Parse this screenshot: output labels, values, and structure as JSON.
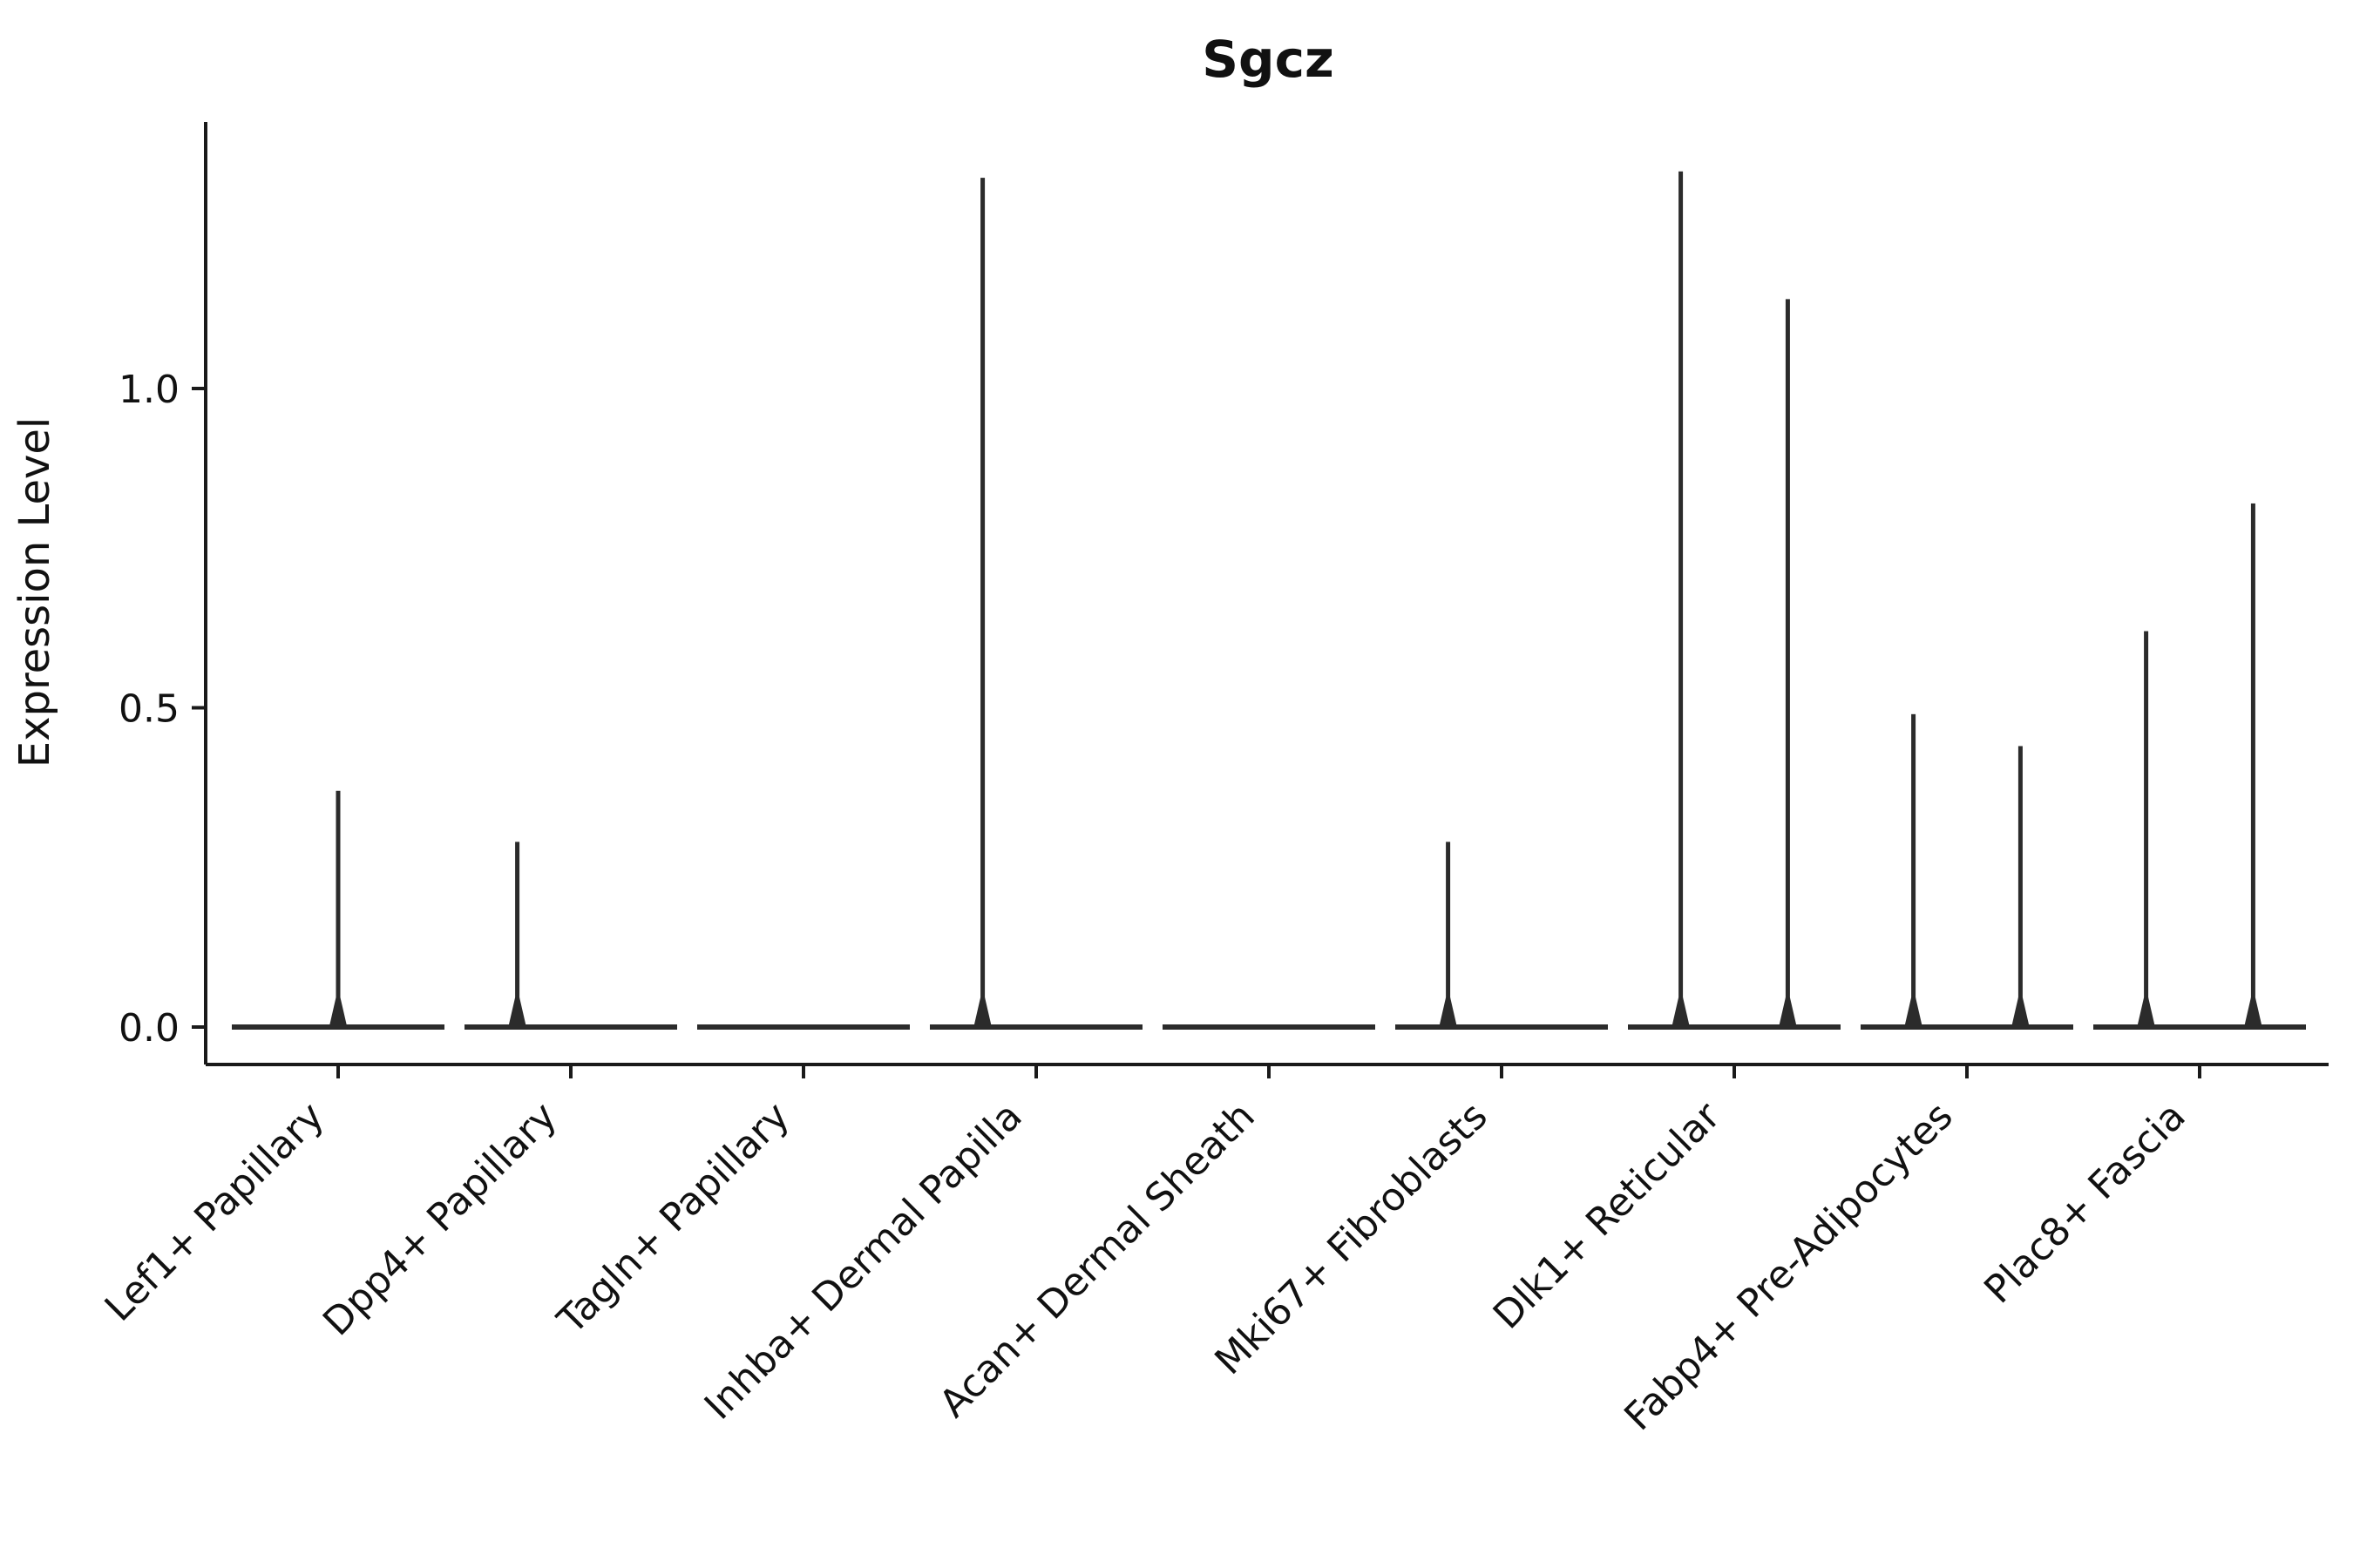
{
  "chart_data": {
    "type": "violin",
    "title": "Sgcz",
    "xlabel": "",
    "ylabel": "Expression Level",
    "ylim": [
      -0.06,
      1.42
    ],
    "yticks": [
      0.0,
      0.5,
      1.0
    ],
    "ytick_labels": [
      "0.0",
      "0.5",
      "1.0"
    ],
    "grid": false,
    "legend": false,
    "line_color": "#2b2b2b",
    "axis_color": "#1a1a1a",
    "categories": [
      "Lef1+ Papillary",
      "Dpp4+ Papillary",
      "Tagln+ Papillary",
      "Inhba+ Dermal Papilla",
      "Acan+ Dermal Sheath",
      "Mki67+ Fibroblasts",
      "Dlk1+ Reticular",
      "Fabp4+ Pre-Adipocytes",
      "Plac8+ Fascia"
    ],
    "violins": [
      {
        "category": "Lef1+ Papillary",
        "baseline": 0.0,
        "spikes": [
          {
            "offset": 0.0,
            "max": 0.37
          }
        ]
      },
      {
        "category": "Dpp4+ Papillary",
        "baseline": 0.0,
        "spikes": [
          {
            "offset": -0.23,
            "max": 0.29
          }
        ]
      },
      {
        "category": "Tagln+ Papillary",
        "baseline": 0.0,
        "spikes": []
      },
      {
        "category": "Inhba+ Dermal Papilla",
        "baseline": 0.0,
        "spikes": [
          {
            "offset": -0.23,
            "max": 1.33
          }
        ]
      },
      {
        "category": "Acan+ Dermal Sheath",
        "baseline": 0.0,
        "spikes": []
      },
      {
        "category": "Mki67+ Fibroblasts",
        "baseline": 0.0,
        "spikes": [
          {
            "offset": -0.23,
            "max": 0.29
          }
        ]
      },
      {
        "category": "Dlk1+ Reticular",
        "baseline": 0.0,
        "spikes": [
          {
            "offset": -0.23,
            "max": 1.34
          },
          {
            "offset": 0.23,
            "max": 1.14
          }
        ]
      },
      {
        "category": "Fabp4+ Pre-Adipocytes",
        "baseline": 0.0,
        "spikes": [
          {
            "offset": -0.23,
            "max": 0.49
          },
          {
            "offset": 0.23,
            "max": 0.44
          }
        ]
      },
      {
        "category": "Plac8+ Fascia",
        "baseline": 0.0,
        "spikes": [
          {
            "offset": -0.23,
            "max": 0.62
          },
          {
            "offset": 0.23,
            "max": 0.82
          }
        ]
      }
    ]
  }
}
